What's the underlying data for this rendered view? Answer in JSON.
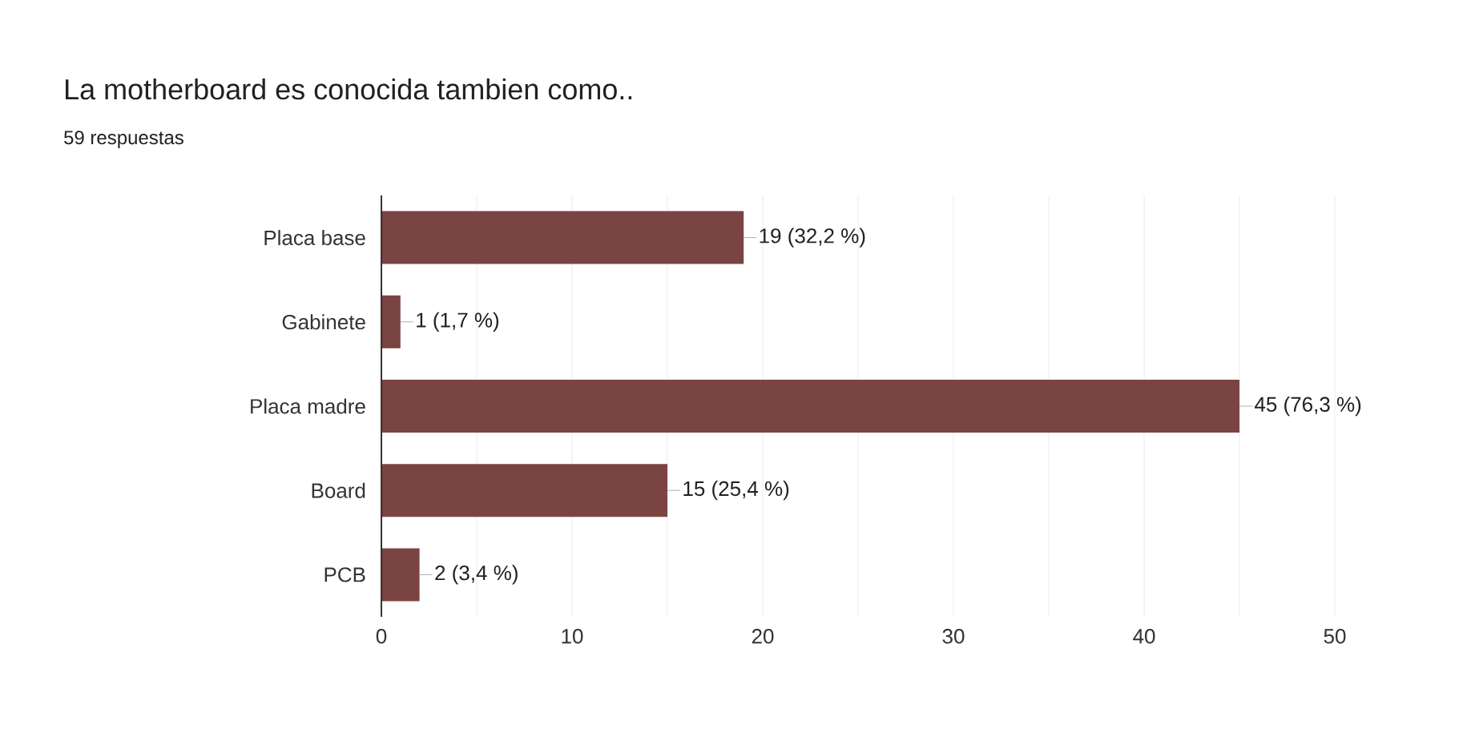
{
  "chart_data": {
    "type": "bar",
    "orientation": "horizontal",
    "title": "La motherboard es conocida tambien como..",
    "subtitle": "59 respuestas",
    "categories": [
      "Placa base",
      "Gabinete",
      "Placa madre",
      "Board",
      "PCB"
    ],
    "values": [
      19,
      1,
      45,
      15,
      2
    ],
    "value_labels": [
      "19 (32,2 %)",
      "1 (1,7 %)",
      "45 (76,3 %)",
      "15 (25,4 %)",
      "2 (3,4 %)"
    ],
    "color": "#7a4442",
    "xlim": [
      0,
      50
    ],
    "xticks": [
      0,
      {
        "value": 5,
        "label": null
      },
      10,
      {
        "value": 15,
        "label": null
      },
      20,
      {
        "value": 25,
        "label": null
      },
      30,
      {
        "value": 35,
        "label": null
      },
      40,
      {
        "value": 45,
        "label": null
      },
      50
    ],
    "grid": "x"
  }
}
